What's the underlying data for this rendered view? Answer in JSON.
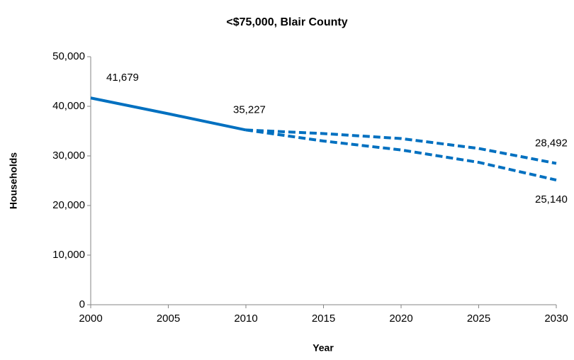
{
  "chart_data": {
    "type": "line",
    "title": "<$75,000, Blair County",
    "x_label": "Year",
    "y_label": "Households",
    "x": [
      2000,
      2005,
      2010,
      2015,
      2020,
      2025,
      2030
    ],
    "xlim": [
      2000,
      2030
    ],
    "xticks": [
      2000,
      2005,
      2010,
      2015,
      2020,
      2025,
      2030
    ],
    "ylim": [
      0,
      50000
    ],
    "yticks": [
      0,
      {
        "value": 10000,
        "label": "10,000"
      },
      {
        "value": 20000,
        "label": "20,000"
      },
      {
        "value": 30000,
        "label": "30,000"
      },
      {
        "value": 40000,
        "label": "40,000"
      },
      {
        "value": 50000,
        "label": "50,000"
      }
    ],
    "grid": false,
    "series": [
      {
        "color": "#0070c0",
        "line_style": "solid",
        "values": [
          41679,
          38500,
          35227,
          null,
          null,
          null,
          null
        ],
        "value_labels": [
          "41,679",
          null,
          "35,227",
          null,
          null,
          null,
          null
        ]
      },
      {
        "color": "#0070c0",
        "line_style": "dashed",
        "values": [
          null,
          null,
          35227,
          34500,
          33500,
          31500,
          28492
        ],
        "value_labels": [
          null,
          null,
          null,
          null,
          null,
          null,
          "28,492"
        ]
      },
      {
        "color": "#0070c0",
        "line_style": "dashed",
        "values": [
          null,
          null,
          35227,
          33000,
          31200,
          28700,
          25140
        ],
        "value_labels": [
          null,
          null,
          null,
          null,
          null,
          null,
          "25,140"
        ]
      }
    ]
  }
}
